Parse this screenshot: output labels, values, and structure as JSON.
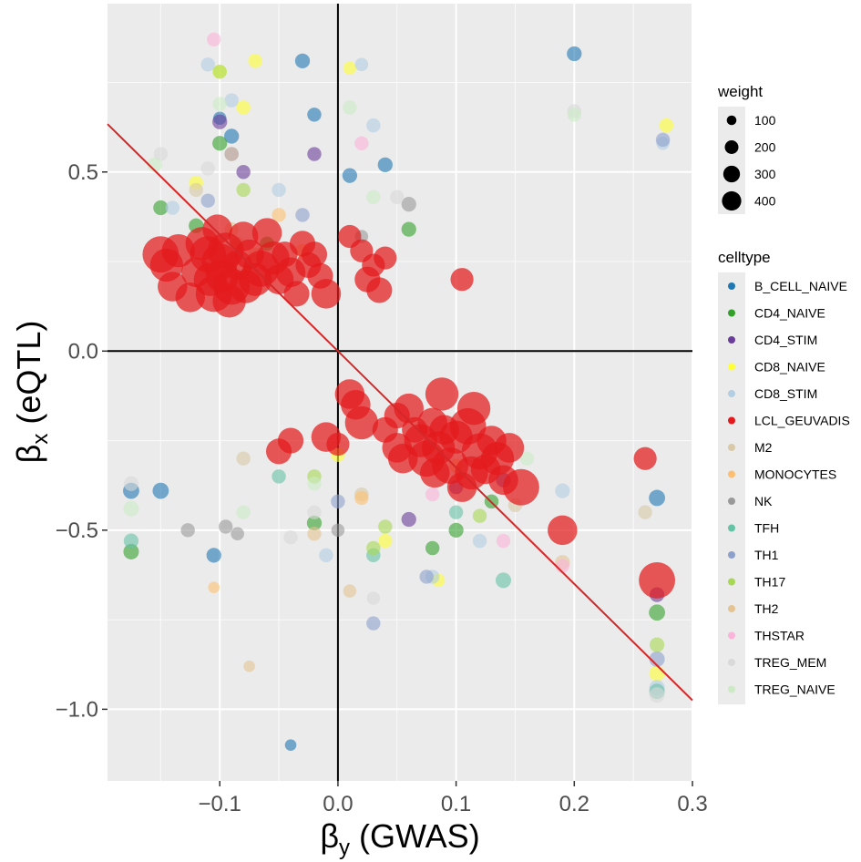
{
  "chart_data": {
    "type": "scatter",
    "xlabel": "βy (GWAS)",
    "ylabel": "βx (eQTL)",
    "xlabel_symbol": "β",
    "xlabel_sub": "y",
    "xlabel_rest": " (GWAS)",
    "ylabel_symbol": "β",
    "ylabel_sub": "x",
    "ylabel_rest": " (eQTL)",
    "xlim": [
      -0.195,
      0.3
    ],
    "ylim": [
      -1.2,
      0.97
    ],
    "x_ticks": [
      -0.1,
      0.0,
      0.1,
      0.2,
      0.3
    ],
    "x_tick_labels": [
      "−0.1",
      "0.0",
      "0.1",
      "0.2",
      "0.3"
    ],
    "y_ticks": [
      0.5,
      0.0,
      -0.5,
      -1.0
    ],
    "y_tick_labels": [
      "0.5",
      "0.0",
      "−0.5",
      "−1.0"
    ],
    "reference_lines": {
      "hline": 0,
      "vline": 0
    },
    "fit_line": {
      "slope": -3.25,
      "intercept": 0,
      "color": "#d62728"
    },
    "size_legend": {
      "title": "weight",
      "values": [
        100,
        200,
        300,
        400
      ],
      "labels": [
        "100",
        "200",
        "300",
        "400"
      ]
    },
    "color_legend": {
      "title": "celltype",
      "entries": [
        {
          "name": "B_CELL_NAIVE",
          "color": "#1f78b4"
        },
        {
          "name": "CD4_NAIVE",
          "color": "#33a02c"
        },
        {
          "name": "CD4_STIM",
          "color": "#6a3d9a"
        },
        {
          "name": "CD8_NAIVE",
          "color": "#ffff33"
        },
        {
          "name": "CD8_STIM",
          "color": "#b3cde3"
        },
        {
          "name": "LCL_GEUVADIS",
          "color": "#e31a1c"
        },
        {
          "name": "M2",
          "color": "#d9c9a8"
        },
        {
          "name": "MONOCYTES",
          "color": "#fdbf6f"
        },
        {
          "name": "NK",
          "color": "#999999"
        },
        {
          "name": "TFH",
          "color": "#66c2a5"
        },
        {
          "name": "TH1",
          "color": "#8da0cb"
        },
        {
          "name": "TH17",
          "color": "#a6d854"
        },
        {
          "name": "TH2",
          "color": "#e5c494"
        },
        {
          "name": "THSTAR",
          "color": "#fbb4d9"
        },
        {
          "name": "TREG_MEM",
          "color": "#d9d9d9"
        },
        {
          "name": "TREG_NAIVE",
          "color": "#ccebc5"
        }
      ]
    },
    "series": [
      {
        "name": "LCL_GEUVADIS",
        "points": [
          [
            -0.15,
            0.27,
            300
          ],
          [
            -0.145,
            0.24,
            250
          ],
          [
            -0.14,
            0.18,
            200
          ],
          [
            -0.135,
            0.28,
            250
          ],
          [
            -0.125,
            0.15,
            200
          ],
          [
            -0.12,
            0.22,
            200
          ],
          [
            -0.115,
            0.3,
            250
          ],
          [
            -0.11,
            0.27,
            300
          ],
          [
            -0.108,
            0.2,
            250
          ],
          [
            -0.105,
            0.16,
            300
          ],
          [
            -0.102,
            0.34,
            200
          ],
          [
            -0.1,
            0.25,
            300
          ],
          [
            -0.098,
            0.21,
            250
          ],
          [
            -0.095,
            0.28,
            300
          ],
          [
            -0.092,
            0.14,
            250
          ],
          [
            -0.09,
            0.18,
            300
          ],
          [
            -0.085,
            0.24,
            200
          ],
          [
            -0.08,
            0.32,
            200
          ],
          [
            -0.078,
            0.18,
            250
          ],
          [
            -0.075,
            0.27,
            200
          ],
          [
            -0.07,
            0.2,
            250
          ],
          [
            -0.065,
            0.23,
            300
          ],
          [
            -0.06,
            0.33,
            200
          ],
          [
            -0.055,
            0.26,
            250
          ],
          [
            -0.05,
            0.2,
            200
          ],
          [
            -0.045,
            0.27,
            150
          ],
          [
            -0.04,
            0.22,
            200
          ],
          [
            -0.035,
            0.16,
            150
          ],
          [
            -0.03,
            0.3,
            150
          ],
          [
            -0.025,
            0.24,
            150
          ],
          [
            -0.02,
            0.27,
            150
          ],
          [
            -0.015,
            0.21,
            150
          ],
          [
            -0.01,
            0.16,
            200
          ],
          [
            0.01,
            0.32,
            120
          ],
          [
            0.02,
            0.28,
            120
          ],
          [
            0.025,
            0.2,
            150
          ],
          [
            0.03,
            0.24,
            120
          ],
          [
            0.035,
            0.17,
            150
          ],
          [
            0.04,
            0.26,
            120
          ],
          [
            0.105,
            0.2,
            120
          ],
          [
            0.01,
            -0.12,
            200
          ],
          [
            0.015,
            -0.15,
            200
          ],
          [
            0.02,
            -0.2,
            250
          ],
          [
            0.04,
            -0.22,
            150
          ],
          [
            0.05,
            -0.18,
            150
          ],
          [
            0.05,
            -0.27,
            200
          ],
          [
            0.055,
            -0.3,
            200
          ],
          [
            0.06,
            -0.16,
            200
          ],
          [
            0.065,
            -0.22,
            150
          ],
          [
            0.07,
            -0.25,
            250
          ],
          [
            0.075,
            -0.3,
            300
          ],
          [
            0.08,
            -0.2,
            200
          ],
          [
            0.082,
            -0.34,
            200
          ],
          [
            0.085,
            -0.27,
            250
          ],
          [
            0.088,
            -0.12,
            250
          ],
          [
            0.09,
            -0.22,
            200
          ],
          [
            0.095,
            -0.32,
            300
          ],
          [
            0.1,
            -0.24,
            250
          ],
          [
            0.105,
            -0.38,
            200
          ],
          [
            0.11,
            -0.21,
            300
          ],
          [
            0.113,
            -0.34,
            250
          ],
          [
            0.115,
            -0.16,
            250
          ],
          [
            0.12,
            -0.28,
            300
          ],
          [
            0.125,
            -0.33,
            200
          ],
          [
            0.13,
            -0.25,
            200
          ],
          [
            0.135,
            -0.3,
            250
          ],
          [
            0.14,
            -0.36,
            200
          ],
          [
            0.145,
            -0.27,
            200
          ],
          [
            0.155,
            -0.38,
            300
          ],
          [
            0.19,
            -0.5,
            200
          ],
          [
            0.26,
            -0.3,
            120
          ],
          [
            0.27,
            -0.64,
            300
          ],
          [
            0.0,
            -0.26,
            120
          ],
          [
            -0.05,
            -0.28,
            150
          ],
          [
            -0.04,
            -0.25,
            150
          ],
          [
            -0.01,
            -0.24,
            200
          ]
        ]
      },
      {
        "name": "B_CELL_NAIVE",
        "points": [
          [
            -0.175,
            -0.39,
            60
          ],
          [
            -0.15,
            -0.39,
            60
          ],
          [
            -0.105,
            -0.57,
            50
          ],
          [
            -0.09,
            0.6,
            50
          ],
          [
            -0.03,
            0.81,
            50
          ],
          [
            -0.02,
            0.66,
            45
          ],
          [
            0.01,
            0.49,
            50
          ],
          [
            0.04,
            0.52,
            50
          ],
          [
            0.2,
            0.83,
            50
          ],
          [
            0.27,
            -0.41,
            60
          ],
          [
            -0.04,
            -1.1,
            30
          ],
          [
            -0.1,
            0.65,
            40
          ]
        ]
      },
      {
        "name": "CD4_NAIVE",
        "points": [
          [
            -0.175,
            -0.56,
            55
          ],
          [
            -0.15,
            0.4,
            50
          ],
          [
            -0.1,
            0.58,
            50
          ],
          [
            -0.09,
            0.55,
            45
          ],
          [
            -0.12,
            0.35,
            50
          ],
          [
            -0.06,
            0.3,
            45
          ],
          [
            0.06,
            0.34,
            50
          ],
          [
            0.08,
            -0.55,
            45
          ],
          [
            0.1,
            -0.5,
            50
          ],
          [
            0.13,
            -0.42,
            45
          ],
          [
            0.27,
            -0.73,
            60
          ],
          [
            -0.02,
            -0.48,
            50
          ]
        ]
      },
      {
        "name": "CD4_STIM",
        "points": [
          [
            -0.1,
            0.64,
            50
          ],
          [
            -0.08,
            0.5,
            45
          ],
          [
            -0.02,
            0.55,
            45
          ],
          [
            0.06,
            -0.47,
            50
          ],
          [
            0.1,
            -0.38,
            45
          ],
          [
            0.14,
            -0.36,
            50
          ],
          [
            0.27,
            -0.68,
            50
          ]
        ]
      },
      {
        "name": "CD8_NAIVE",
        "points": [
          [
            -0.07,
            0.81,
            45
          ],
          [
            -0.1,
            0.78,
            45
          ],
          [
            -0.08,
            0.68,
            45
          ],
          [
            0.01,
            0.79,
            40
          ],
          [
            0.04,
            -0.53,
            45
          ],
          [
            0.085,
            -0.64,
            40
          ],
          [
            0.27,
            -0.9,
            55
          ],
          [
            0.278,
            0.63,
            45
          ],
          [
            -0.12,
            0.47,
            45
          ],
          [
            0.0,
            -0.29,
            45
          ]
        ]
      },
      {
        "name": "CD8_STIM",
        "points": [
          [
            -0.11,
            0.8,
            45
          ],
          [
            -0.09,
            0.7,
            45
          ],
          [
            -0.05,
            0.45,
            45
          ],
          [
            0.02,
            0.8,
            40
          ],
          [
            0.03,
            0.63,
            45
          ],
          [
            -0.01,
            -0.57,
            45
          ],
          [
            0.08,
            -0.63,
            45
          ],
          [
            0.12,
            -0.53,
            45
          ],
          [
            0.27,
            -0.94,
            55
          ],
          [
            0.275,
            0.58,
            40
          ],
          [
            0.19,
            -0.39,
            50
          ],
          [
            -0.14,
            0.4,
            45
          ]
        ]
      },
      {
        "name": "M2",
        "points": [
          [
            -0.12,
            0.45,
            45
          ],
          [
            -0.085,
            0.3,
            45
          ],
          [
            0.02,
            -0.4,
            45
          ],
          [
            -0.08,
            -0.3,
            45
          ],
          [
            0.15,
            -0.43,
            45
          ],
          [
            0.26,
            -0.45,
            45
          ]
        ]
      },
      {
        "name": "MONOCYTES",
        "points": [
          [
            -0.05,
            0.38,
            45
          ],
          [
            -0.03,
            0.28,
            45
          ],
          [
            0.1,
            -0.32,
            45
          ],
          [
            -0.105,
            -0.66,
            30
          ],
          [
            0.02,
            -0.41,
            45
          ]
        ]
      },
      {
        "name": "NK",
        "points": [
          [
            -0.127,
            -0.5,
            45
          ],
          [
            -0.095,
            -0.49,
            45
          ],
          [
            -0.085,
            -0.51,
            40
          ],
          [
            0.06,
            0.41,
            50
          ],
          [
            0.0,
            -0.5,
            40
          ],
          [
            0.02,
            0.32,
            40
          ]
        ]
      },
      {
        "name": "TFH",
        "points": [
          [
            -0.175,
            -0.53,
            50
          ],
          [
            -0.05,
            -0.35,
            45
          ],
          [
            0.03,
            -0.57,
            45
          ],
          [
            0.1,
            -0.45,
            45
          ],
          [
            0.14,
            -0.64,
            55
          ],
          [
            0.27,
            -0.95,
            55
          ]
        ]
      },
      {
        "name": "TH1",
        "points": [
          [
            -0.11,
            0.42,
            45
          ],
          [
            -0.03,
            0.38,
            45
          ],
          [
            0.0,
            -0.42,
            45
          ],
          [
            0.03,
            -0.76,
            45
          ],
          [
            0.075,
            -0.63,
            45
          ],
          [
            0.27,
            -0.86,
            55
          ],
          [
            0.275,
            0.59,
            45
          ]
        ]
      },
      {
        "name": "TH17",
        "points": [
          [
            -0.1,
            0.78,
            45
          ],
          [
            -0.08,
            0.45,
            45
          ],
          [
            0.03,
            -0.55,
            45
          ],
          [
            0.04,
            -0.49,
            45
          ],
          [
            0.12,
            -0.46,
            45
          ],
          [
            0.27,
            -0.82,
            50
          ],
          [
            -0.02,
            -0.35,
            45
          ]
        ]
      },
      {
        "name": "TH2",
        "points": [
          [
            -0.09,
            0.34,
            45
          ],
          [
            -0.07,
            0.27,
            45
          ],
          [
            -0.02,
            -0.51,
            45
          ],
          [
            0.01,
            -0.67,
            40
          ],
          [
            -0.075,
            -0.88,
            30
          ],
          [
            0.19,
            -0.59,
            50
          ]
        ]
      },
      {
        "name": "THSTAR",
        "points": [
          [
            -0.105,
            0.87,
            45
          ],
          [
            -0.09,
            0.55,
            45
          ],
          [
            0.02,
            0.58,
            45
          ],
          [
            0.08,
            -0.4,
            45
          ],
          [
            0.14,
            -0.53,
            45
          ],
          [
            0.19,
            -0.6,
            45
          ]
        ]
      },
      {
        "name": "TREG_MEM",
        "points": [
          [
            -0.175,
            -0.37,
            50
          ],
          [
            -0.15,
            0.55,
            45
          ],
          [
            -0.11,
            0.51,
            45
          ],
          [
            -0.04,
            -0.52,
            45
          ],
          [
            -0.02,
            -0.45,
            45
          ],
          [
            0.03,
            -0.69,
            40
          ],
          [
            0.27,
            -0.96,
            55
          ],
          [
            0.2,
            0.67,
            45
          ],
          [
            0.05,
            0.43,
            45
          ]
        ]
      },
      {
        "name": "TREG_NAIVE",
        "points": [
          [
            -0.175,
            -0.44,
            55
          ],
          [
            -0.155,
            0.52,
            50
          ],
          [
            -0.1,
            0.69,
            45
          ],
          [
            0.03,
            0.43,
            45
          ],
          [
            -0.08,
            -0.45,
            45
          ],
          [
            0.2,
            0.66,
            45
          ],
          [
            0.16,
            -0.3,
            45
          ],
          [
            -0.02,
            -0.37,
            45
          ],
          [
            0.01,
            0.68,
            45
          ]
        ]
      }
    ]
  }
}
